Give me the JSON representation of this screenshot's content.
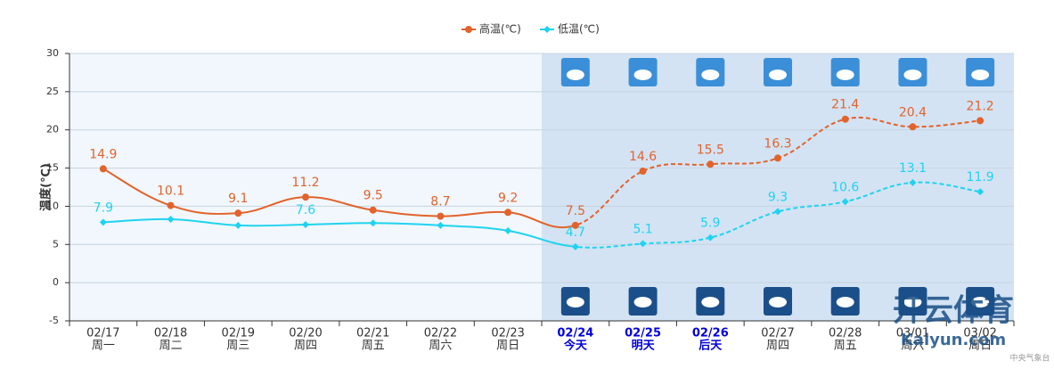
{
  "chart_data": {
    "type": "line",
    "categories": [
      "02/17",
      "02/18",
      "02/19",
      "02/20",
      "02/21",
      "02/22",
      "02/23",
      "02/24",
      "02/25",
      "02/26",
      "02/27",
      "02/28",
      "03/01",
      "03/02"
    ],
    "weekdays": [
      "周一",
      "周二",
      "周三",
      "周四",
      "周五",
      "周六",
      "周日",
      "今天",
      "明天",
      "后天",
      "周四",
      "周五",
      "周六",
      "周日"
    ],
    "highlight_categories": [
      "02/24",
      "02/25",
      "02/26"
    ],
    "forecast_start": 7,
    "y_label": "温度(℃)",
    "ylim": [
      -5,
      30
    ],
    "yticks": [
      -5,
      0,
      5,
      10,
      15,
      20,
      25,
      30
    ],
    "grid": true,
    "series": [
      {
        "name": "高温(℃)",
        "color": "#e2632b",
        "marker": "circle",
        "values": [
          14.9,
          10.1,
          9.1,
          11.2,
          9.5,
          8.7,
          9.2,
          7.5,
          14.6,
          15.5,
          16.3,
          21.4,
          20.4,
          21.2
        ]
      },
      {
        "name": "低温(℃)",
        "color": "#1fd3ef",
        "marker": "diamond",
        "values": [
          7.9,
          8.3,
          7.5,
          7.6,
          7.8,
          7.5,
          6.8,
          4.7,
          5.1,
          5.9,
          9.3,
          10.6,
          13.1,
          11.9
        ],
        "value_labels": [
          "7.9",
          null,
          null,
          "7.6",
          null,
          null,
          null,
          "4.7",
          "5.1",
          "5.9",
          "9.3",
          "10.6",
          "13.1",
          "11.9"
        ]
      }
    ],
    "source": "中央气象台",
    "watermark": [
      "开云体育",
      "Kaiyun.com"
    ]
  }
}
